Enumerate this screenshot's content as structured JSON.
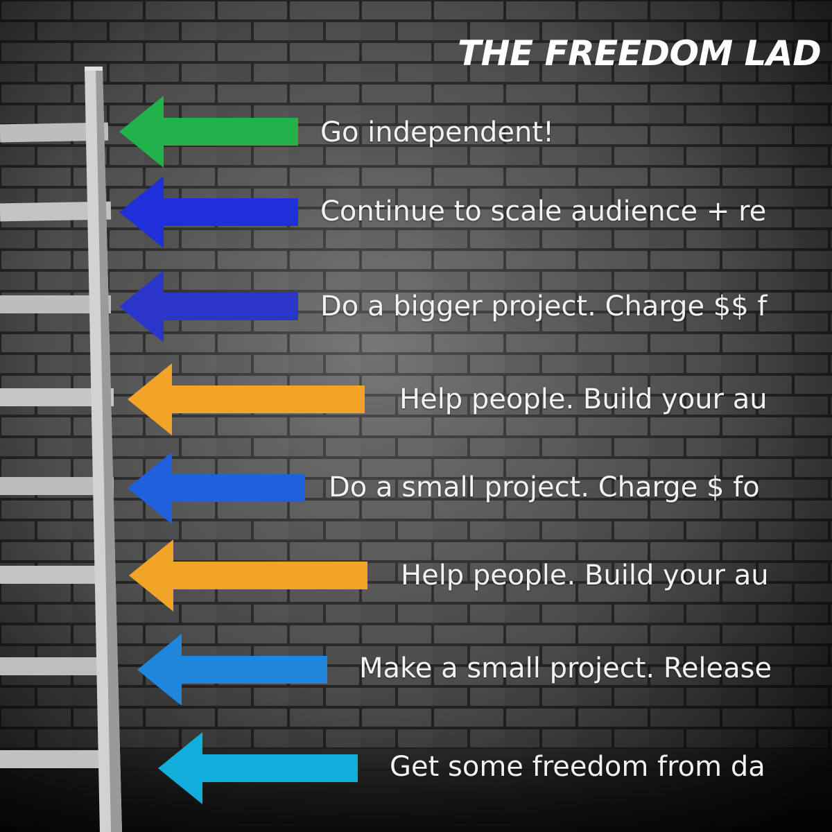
{
  "title": "THE FREEDOM LAD",
  "steps": [
    {
      "label": "Go independent!",
      "color": "#22b24a",
      "icon": "arrow-left-icon"
    },
    {
      "label": "Continue to scale audience + re",
      "color": "#1f2fd9",
      "icon": "arrow-left-icon"
    },
    {
      "label": "Do a bigger project. Charge $$ f",
      "color": "#2a35c9",
      "icon": "arrow-left-icon"
    },
    {
      "label": "Help people. Build your au",
      "color": "#f2a428",
      "icon": "arrow-left-icon"
    },
    {
      "label": "Do a small project. Charge $ fo",
      "color": "#2160dd",
      "icon": "arrow-left-icon"
    },
    {
      "label": "Help people. Build your au",
      "color": "#f2a428",
      "icon": "arrow-left-icon"
    },
    {
      "label": "Make a small project. Release",
      "color": "#1f86dc",
      "icon": "arrow-left-icon"
    },
    {
      "label": "Get some freedom from da",
      "color": "#12aedb",
      "icon": "arrow-left-icon"
    }
  ]
}
